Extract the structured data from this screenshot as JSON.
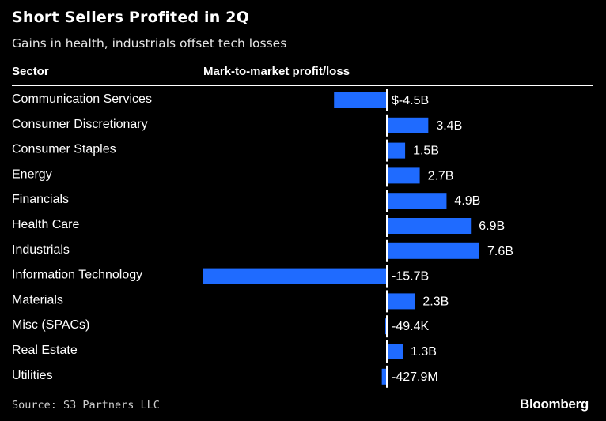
{
  "header": {
    "title": "Short Sellers Profited in 2Q",
    "subtitle": "Gains in health, industrials offset tech losses",
    "column_sector": "Sector",
    "column_value": "Mark-to-market profit/loss"
  },
  "footer": {
    "source": "Source: S3 Partners LLC",
    "brand": "Bloomberg"
  },
  "colors": {
    "bar": "#1f6bff",
    "background": "#000000",
    "text": "#ffffff"
  },
  "chart_data": {
    "type": "bar",
    "orientation": "horizontal",
    "title": "Short Sellers Profited in 2Q",
    "subtitle": "Gains in health, industrials offset tech losses",
    "xlabel": "Mark-to-market profit/loss",
    "ylabel": "Sector",
    "unit": "USD billions",
    "categories": [
      "Communication Services",
      "Consumer Discretionary",
      "Consumer Staples",
      "Energy",
      "Financials",
      "Health Care",
      "Industrials",
      "Information Technology",
      "Materials",
      "Misc (SPACs)",
      "Real Estate",
      "Utilities"
    ],
    "values": [
      -4.5,
      3.4,
      1.5,
      2.7,
      4.9,
      6.9,
      7.6,
      -15.7,
      2.3,
      -4.94e-05,
      1.3,
      -0.4279
    ],
    "value_labels": [
      "$-4.5B",
      "3.4B",
      "1.5B",
      "2.7B",
      "4.9B",
      "6.9B",
      "7.6B",
      "-15.7B",
      "2.3B",
      "-49.4K",
      "1.3B",
      "-427.9M"
    ],
    "xlim": [
      -15.7,
      7.6
    ],
    "grid": false,
    "legend": "none"
  }
}
